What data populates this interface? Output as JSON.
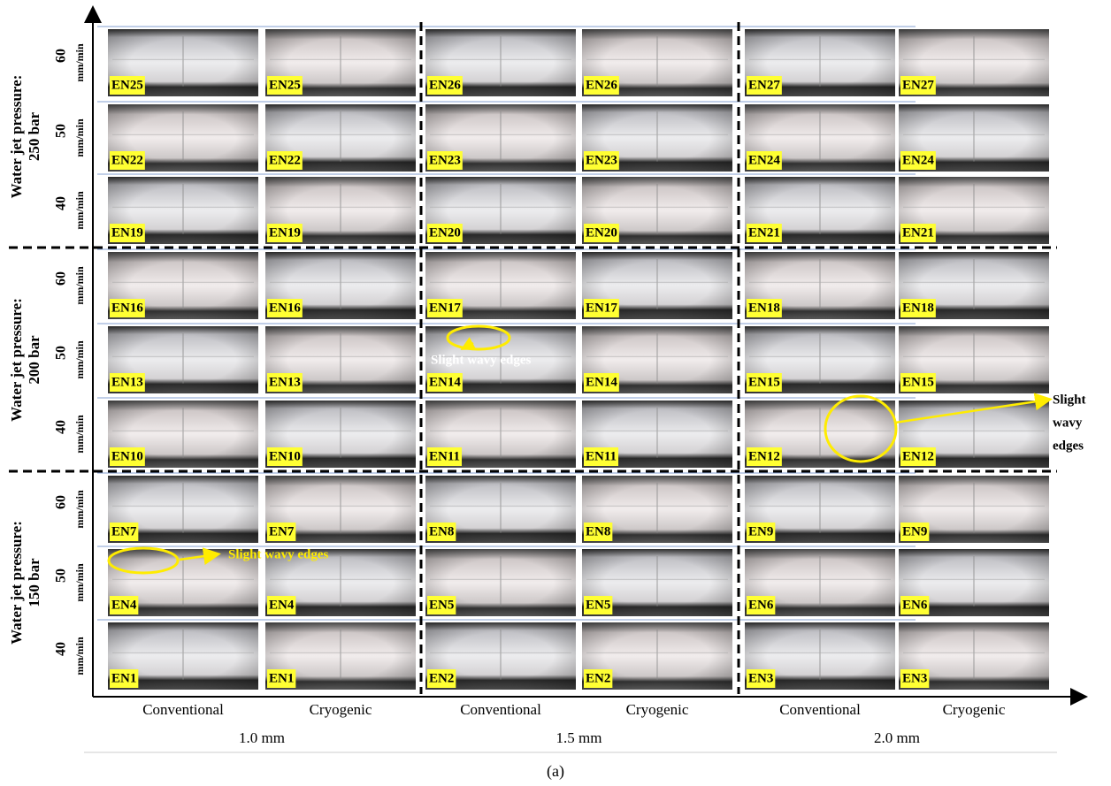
{
  "groups": [
    {
      "label": "Water jet pressure:",
      "pressure": "250 bar",
      "rows": [
        {
          "speed": "60",
          "unit": "mm/min",
          "cells": [
            "EN25",
            "EN25",
            "EN26",
            "EN26",
            "EN27",
            "EN27"
          ]
        },
        {
          "speed": "50",
          "unit": "mm/min",
          "cells": [
            "EN22",
            "EN22",
            "EN23",
            "EN23",
            "EN24",
            "EN24"
          ]
        },
        {
          "speed": "40",
          "unit": "mm/min",
          "cells": [
            "EN19",
            "EN19",
            "EN20",
            "EN20",
            "EN21",
            "EN21"
          ]
        }
      ]
    },
    {
      "label": "Water jet pressure:",
      "pressure": "200 bar",
      "rows": [
        {
          "speed": "60",
          "unit": "mm/min",
          "cells": [
            "EN16",
            "EN16",
            "EN17",
            "EN17",
            "EN18",
            "EN18"
          ]
        },
        {
          "speed": "50",
          "unit": "mm/min",
          "cells": [
            "EN13",
            "EN13",
            "EN14",
            "EN14",
            "EN15",
            "EN15"
          ]
        },
        {
          "speed": "40",
          "unit": "mm/min",
          "cells": [
            "EN10",
            "EN10",
            "EN11",
            "EN11",
            "EN12",
            "EN12"
          ]
        }
      ]
    },
    {
      "label": "Water jet pressure:",
      "pressure": "150 bar",
      "rows": [
        {
          "speed": "60",
          "unit": "mm/min",
          "cells": [
            "EN7",
            "EN7",
            "EN8",
            "EN8",
            "EN9",
            "EN9"
          ]
        },
        {
          "speed": "50",
          "unit": "mm/min",
          "cells": [
            "EN4",
            "EN4",
            "EN5",
            "EN5",
            "EN6",
            "EN6"
          ]
        },
        {
          "speed": "40",
          "unit": "mm/min",
          "cells": [
            "EN1",
            "EN1",
            "EN2",
            "EN2",
            "EN3",
            "EN3"
          ]
        }
      ]
    }
  ],
  "columns": [
    {
      "thickness": "1.0 mm",
      "methods": [
        "Conventional",
        "Cryogenic"
      ]
    },
    {
      "thickness": "1.5 mm",
      "methods": [
        "Conventional",
        "Cryogenic"
      ]
    },
    {
      "thickness": "2.0 mm",
      "methods": [
        "Conventional",
        "Cryogenic"
      ]
    }
  ],
  "annotations": [
    {
      "lines": [
        "Slight wavy edges"
      ]
    },
    {
      "lines": [
        "Slight",
        "wavy",
        "edges"
      ]
    },
    {
      "lines": [
        "Slight wavy edges"
      ]
    }
  ],
  "caption": "(a)"
}
